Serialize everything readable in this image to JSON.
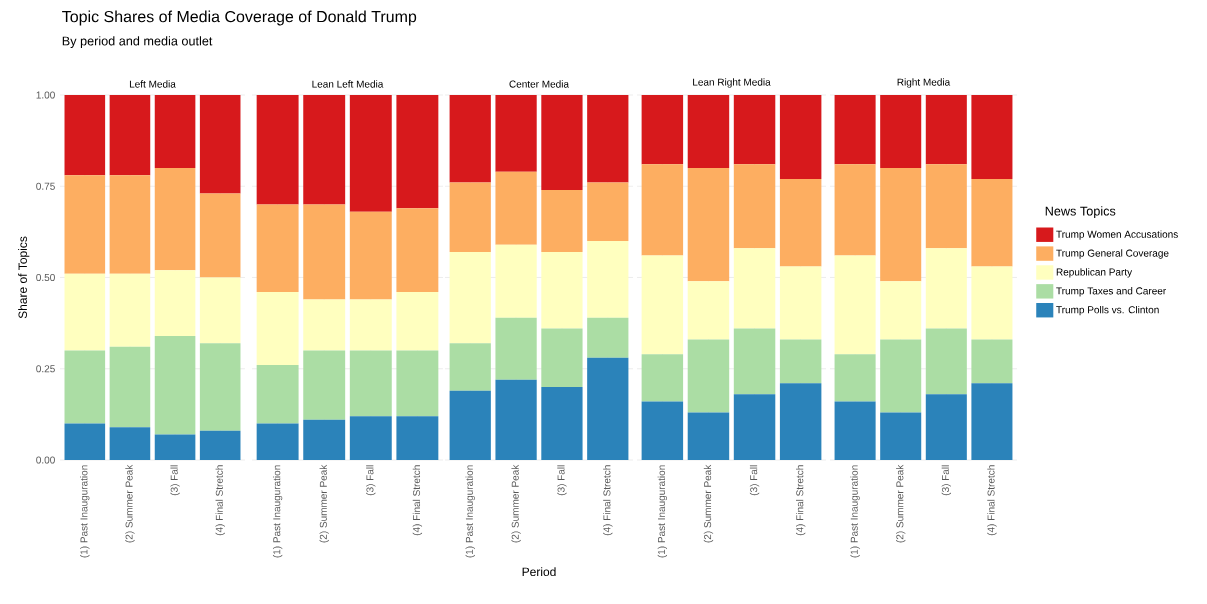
{
  "chart_data": [
    {
      "type": "bar",
      "stacked": true,
      "title": "Left Media",
      "annotations": [
        "Topic Shares of Media Coverage of Donald Trump",
        "By period and media outlet"
      ],
      "ylabel": "Share of Topics",
      "categories": [
        "(1) Past Inauguration",
        "(2) Summer Peak",
        "(3) Fall",
        "(4) Final Stretch"
      ],
      "series": [
        {
          "color": "#2b83ba",
          "values": [
            0.1,
            0.09,
            0.07,
            0.08
          ]
        },
        {
          "color": "#abdda4",
          "values": [
            0.2,
            0.22,
            0.27,
            0.24
          ]
        },
        {
          "color": "#ffffbf",
          "values": [
            0.21,
            0.2,
            0.18,
            0.18
          ]
        },
        {
          "color": "#fdae61",
          "values": [
            0.27,
            0.27,
            0.28,
            0.23
          ]
        },
        {
          "color": "#d7191c",
          "values": [
            0.22,
            0.22,
            0.2,
            0.27
          ]
        }
      ],
      "ylim": [
        0,
        1
      ],
      "yticks": [
        {
          "value": 0,
          "label": "0.00"
        },
        {
          "value": 0.25,
          "label": "0.25"
        },
        {
          "value": 0.5,
          "label": "0.50"
        },
        {
          "value": 0.75,
          "label": "0.75"
        },
        {
          "value": 1,
          "label": "1.00"
        }
      ],
      "grid": true
    },
    {
      "type": "bar",
      "stacked": true,
      "title": "Lean Left Media",
      "categories": [
        "(1) Past Inauguration",
        "(2) Summer Peak",
        "(3) Fall",
        "(4) Final Stretch"
      ],
      "series": [
        {
          "color": "#2b83ba",
          "values": [
            0.1,
            0.11,
            0.12,
            0.12
          ]
        },
        {
          "color": "#abdda4",
          "values": [
            0.16,
            0.19,
            0.18,
            0.18
          ]
        },
        {
          "color": "#ffffbf",
          "values": [
            0.2,
            0.14,
            0.14,
            0.16
          ]
        },
        {
          "color": "#fdae61",
          "values": [
            0.24,
            0.26,
            0.24,
            0.23
          ]
        },
        {
          "color": "#d7191c",
          "values": [
            0.3,
            0.3,
            0.32,
            0.31
          ]
        }
      ],
      "ylim": [
        0,
        1
      ],
      "yticks": [
        0,
        0.25,
        0.5,
        0.75,
        1
      ],
      "grid": true,
      "tick_labels": "x"
    },
    {
      "type": "bar",
      "stacked": true,
      "title": "Center Media",
      "xlabel": "Period",
      "categories": [
        "(1) Past Inauguration",
        "(2) Summer Peak",
        "(3) Fall",
        "(4) Final Stretch"
      ],
      "series": [
        {
          "color": "#2b83ba",
          "values": [
            0.19,
            0.22,
            0.2,
            0.28
          ]
        },
        {
          "color": "#abdda4",
          "values": [
            0.13,
            0.17,
            0.16,
            0.11
          ]
        },
        {
          "color": "#ffffbf",
          "values": [
            0.25,
            0.2,
            0.21,
            0.21
          ]
        },
        {
          "color": "#fdae61",
          "values": [
            0.19,
            0.2,
            0.17,
            0.16
          ]
        },
        {
          "color": "#d7191c",
          "values": [
            0.24,
            0.21,
            0.26,
            0.24
          ]
        }
      ],
      "ylim": [
        0,
        1
      ],
      "yticks": [
        0,
        0.25,
        0.5,
        0.75,
        1
      ],
      "grid": true,
      "tick_labels": "x"
    },
    {
      "type": "bar",
      "stacked": true,
      "title": "Lean Right Media",
      "categories": [
        "(1) Past Inauguration",
        "(2) Summer Peak",
        "(3) Fall",
        "(4) Final Stretch"
      ],
      "series": [
        {
          "color": "#2b83ba",
          "values": [
            0.16,
            0.13,
            0.18,
            0.21
          ]
        },
        {
          "color": "#abdda4",
          "values": [
            0.13,
            0.2,
            0.18,
            0.12
          ]
        },
        {
          "color": "#ffffbf",
          "values": [
            0.27,
            0.16,
            0.22,
            0.2
          ]
        },
        {
          "color": "#fdae61",
          "values": [
            0.25,
            0.31,
            0.23,
            0.24
          ]
        },
        {
          "color": "#d7191c",
          "values": [
            0.19,
            0.2,
            0.19,
            0.23
          ]
        }
      ],
      "ylim": [
        0,
        1
      ],
      "yticks": [
        0,
        0.25,
        0.5,
        0.75,
        1
      ],
      "grid": true,
      "tick_labels": "x"
    },
    {
      "type": "bar",
      "stacked": true,
      "title": "Right Media",
      "legend_title": "News Topics",
      "legend": "right",
      "categories": [
        "(1) Past Inauguration",
        "(2) Summer Peak",
        "(3) Fall",
        "(4) Final Stretch"
      ],
      "series": [
        {
          "name": "Trump Polls vs. Clinton",
          "color": "#2b83ba",
          "values": [
            0.16,
            0.13,
            0.18,
            0.21
          ]
        },
        {
          "name": "Trump Taxes and Career",
          "color": "#abdda4",
          "values": [
            0.13,
            0.2,
            0.18,
            0.12
          ]
        },
        {
          "name": "Republican Party",
          "color": "#ffffbf",
          "values": [
            0.27,
            0.16,
            0.22,
            0.2
          ]
        },
        {
          "name": "Trump General Coverage",
          "color": "#fdae61",
          "values": [
            0.25,
            0.31,
            0.23,
            0.24
          ]
        },
        {
          "name": "Trump Women Accusations",
          "color": "#d7191c",
          "values": [
            0.19,
            0.2,
            0.19,
            0.23
          ]
        }
      ],
      "ylim": [
        0,
        1
      ],
      "yticks": [
        0,
        0.25,
        0.5,
        0.75,
        1
      ],
      "grid": true,
      "tick_labels": "x"
    }
  ]
}
